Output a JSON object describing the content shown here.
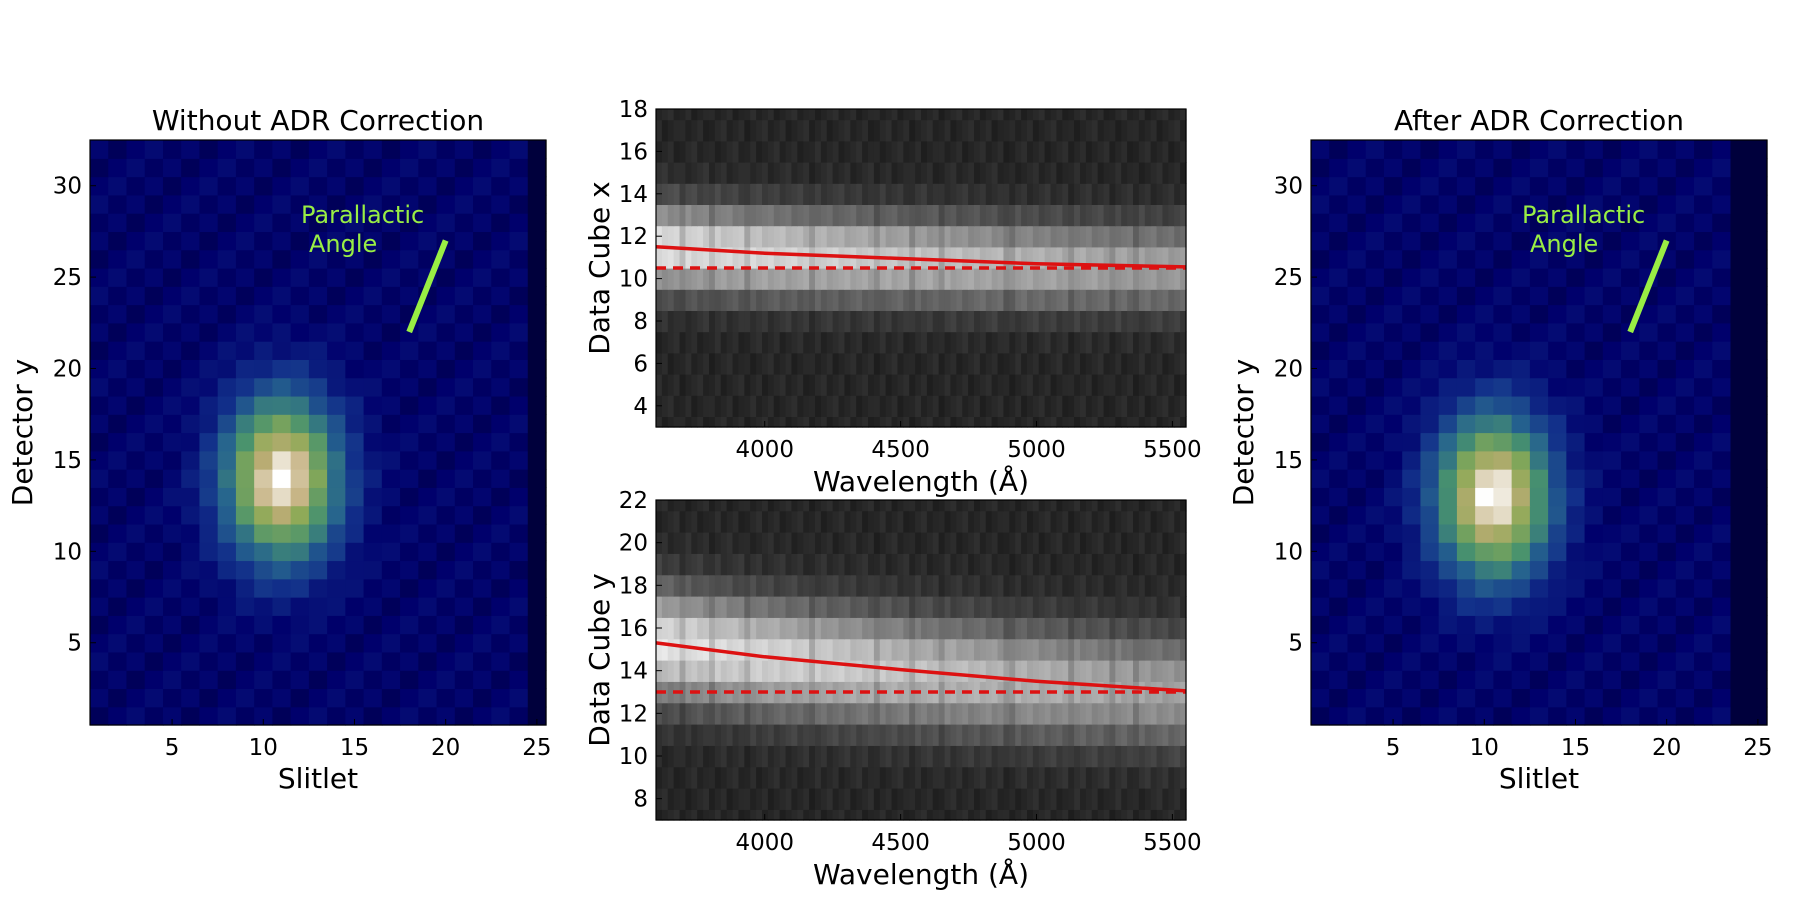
{
  "chart_data": [
    {
      "type": "heatmap",
      "title": "Without ADR Correction",
      "xlabel": "Slitlet",
      "ylabel": "Detector y",
      "xlim": [
        0.5,
        25.5
      ],
      "ylim": [
        0.5,
        32.5
      ],
      "xticks": [
        5,
        10,
        15,
        20,
        25
      ],
      "yticks": [
        5,
        10,
        15,
        20,
        25,
        30
      ],
      "colormap": "gist_earth",
      "source_peak": {
        "x": 11,
        "y": 14
      },
      "source_sigma": {
        "x": 2.1,
        "y": 3.0
      },
      "dark_column_from_x": 24.5,
      "annotation": {
        "text_line1": "Parallactic",
        "text_line2": "Angle",
        "color": "#99ee44"
      },
      "parallactic_line": {
        "x": [
          18,
          20
        ],
        "y": [
          22,
          27
        ]
      }
    },
    {
      "type": "heatmap",
      "xlabel": "Wavelength (Å)",
      "ylabel": "Data Cube x",
      "xlim": [
        3600,
        5550
      ],
      "ylim": [
        3,
        18
      ],
      "xticks": [
        4000,
        4500,
        5000,
        5500
      ],
      "yticks": [
        4,
        6,
        8,
        10,
        12,
        14,
        16,
        18
      ],
      "colormap": "gray",
      "band_center": 11,
      "band_sigma": 1.4,
      "adr_curve": {
        "x": [
          3600,
          4000,
          4500,
          5000,
          5550
        ],
        "y": [
          11.5,
          11.2,
          10.95,
          10.7,
          10.55
        ]
      },
      "reference_line": {
        "y": 10.5
      },
      "line_color": "#dd1111"
    },
    {
      "type": "heatmap",
      "xlabel": "Wavelength (Å)",
      "ylabel": "Data Cube y",
      "xlim": [
        3600,
        5550
      ],
      "ylim": [
        7,
        22
      ],
      "xticks": [
        4000,
        4500,
        5000,
        5500
      ],
      "yticks": [
        8,
        10,
        12,
        14,
        16,
        18,
        20,
        22
      ],
      "colormap": "gray",
      "band_center": 14.5,
      "band_sigma": 1.8,
      "adr_curve": {
        "x": [
          3600,
          4000,
          4500,
          5000,
          5550
        ],
        "y": [
          15.3,
          14.65,
          14.05,
          13.5,
          13.05
        ]
      },
      "reference_line": {
        "y": 13.0
      },
      "line_color": "#dd1111"
    },
    {
      "type": "heatmap",
      "title": "After ADR Correction",
      "xlabel": "Slitlet",
      "ylabel": "Detector y",
      "xlim": [
        0.5,
        25.5
      ],
      "ylim": [
        0.5,
        32.5
      ],
      "xticks": [
        5,
        10,
        15,
        20,
        25
      ],
      "yticks": [
        5,
        10,
        15,
        20,
        25,
        30
      ],
      "colormap": "gist_earth",
      "source_peak": {
        "x": 10.5,
        "y": 13
      },
      "source_sigma": {
        "x": 2.1,
        "y": 3.0
      },
      "dark_column_from_x": 23.5,
      "annotation": {
        "text_line1": "Parallactic",
        "text_line2": "Angle",
        "color": "#99ee44"
      },
      "parallactic_line": {
        "x": [
          18,
          20
        ],
        "y": [
          22,
          27
        ]
      }
    }
  ]
}
